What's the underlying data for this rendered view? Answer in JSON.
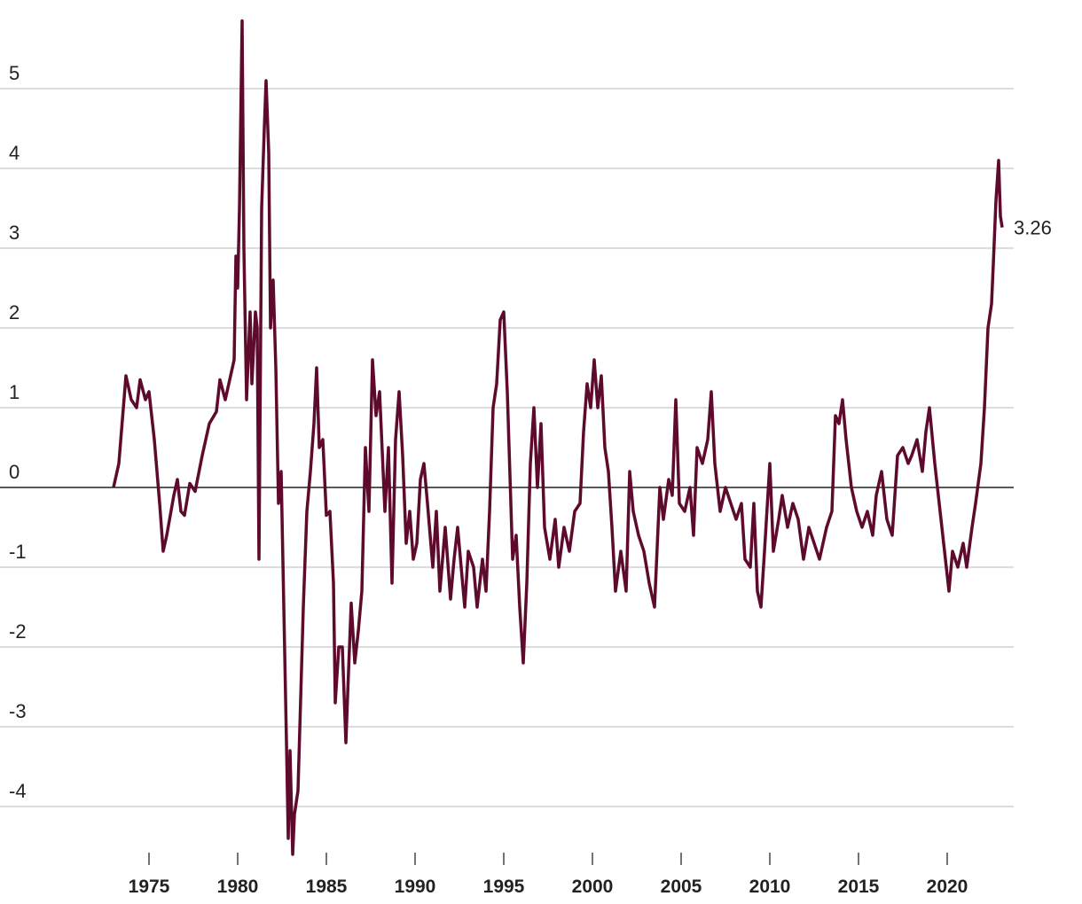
{
  "chart_data": {
    "type": "line",
    "xlim": [
      1966.6,
      2023.75
    ],
    "xticks": [
      1975,
      1980,
      1985,
      1990,
      1995,
      2000,
      2005,
      2010,
      2015,
      2020
    ],
    "ylim": [
      -4.6,
      5.9
    ],
    "yticks": [
      -4,
      -3,
      -2,
      -1,
      0,
      1,
      2,
      3,
      4,
      5
    ],
    "grid": true,
    "series": [
      {
        "color": "#5e0a2c",
        "x": [
          1973.0,
          1973.3,
          1973.7,
          1974.0,
          1974.3,
          1974.5,
          1974.8,
          1975.0,
          1975.3,
          1975.6,
          1975.8,
          1976.0,
          1976.4,
          1976.6,
          1976.8,
          1977.0,
          1977.3,
          1977.6,
          1978.0,
          1978.4,
          1978.8,
          1979.0,
          1979.3,
          1979.6,
          1979.8,
          1979.9,
          1980.0,
          1980.1,
          1980.25,
          1980.35,
          1980.5,
          1980.7,
          1980.8,
          1981.0,
          1981.1,
          1981.2,
          1981.35,
          1981.5,
          1981.6,
          1981.75,
          1981.85,
          1982.0,
          1982.15,
          1982.3,
          1982.45,
          1982.6,
          1982.75,
          1982.85,
          1982.95,
          1983.1,
          1983.2,
          1983.4,
          1983.7,
          1983.9,
          1984.1,
          1984.3,
          1984.45,
          1984.6,
          1984.8,
          1985.0,
          1985.2,
          1985.4,
          1985.5,
          1985.7,
          1985.9,
          1986.1,
          1986.25,
          1986.4,
          1986.6,
          1986.8,
          1987.0,
          1987.2,
          1987.4,
          1987.6,
          1987.8,
          1988.0,
          1988.3,
          1988.5,
          1988.7,
          1988.9,
          1989.1,
          1989.3,
          1989.5,
          1989.7,
          1989.9,
          1990.1,
          1990.3,
          1990.5,
          1990.7,
          1991.0,
          1991.2,
          1991.4,
          1991.7,
          1992.0,
          1992.2,
          1992.4,
          1992.6,
          1992.8,
          1993.0,
          1993.3,
          1993.5,
          1993.8,
          1994.0,
          1994.2,
          1994.4,
          1994.6,
          1994.8,
          1995.0,
          1995.2,
          1995.5,
          1995.7,
          1995.9,
          1996.1,
          1996.3,
          1996.5,
          1996.7,
          1996.9,
          1997.1,
          1997.3,
          1997.6,
          1997.9,
          1998.1,
          1998.4,
          1998.7,
          1999.0,
          1999.3,
          1999.5,
          1999.7,
          1999.9,
          2000.1,
          2000.3,
          2000.5,
          2000.7,
          2000.9,
          2001.1,
          2001.3,
          2001.6,
          2001.9,
          2002.1,
          2002.3,
          2002.6,
          2002.9,
          2003.2,
          2003.5,
          2003.8,
          2004.0,
          2004.3,
          2004.5,
          2004.7,
          2004.9,
          2005.2,
          2005.5,
          2005.7,
          2005.9,
          2006.2,
          2006.5,
          2006.7,
          2006.9,
          2007.2,
          2007.5,
          2007.8,
          2008.1,
          2008.4,
          2008.6,
          2008.9,
          2009.1,
          2009.3,
          2009.5,
          2009.7,
          2010.0,
          2010.2,
          2010.5,
          2010.7,
          2011.0,
          2011.3,
          2011.6,
          2011.9,
          2012.2,
          2012.5,
          2012.8,
          2013.2,
          2013.5,
          2013.7,
          2013.9,
          2014.1,
          2014.3,
          2014.6,
          2014.9,
          2015.2,
          2015.5,
          2015.8,
          2016.0,
          2016.3,
          2016.6,
          2016.9,
          2017.2,
          2017.5,
          2017.8,
          2018.0,
          2018.3,
          2018.6,
          2018.8,
          2019.0,
          2019.3,
          2019.6,
          2019.9,
          2020.1,
          2020.3,
          2020.6,
          2020.9,
          2021.1,
          2021.4,
          2021.6,
          2021.9,
          2022.1,
          2022.3,
          2022.5,
          2022.6,
          2022.75,
          2022.9,
          2023.0,
          2023.1
        ],
        "values": [
          0.0,
          0.3,
          1.4,
          1.1,
          1.0,
          1.35,
          1.1,
          1.2,
          0.6,
          -0.2,
          -0.8,
          -0.6,
          -0.1,
          0.1,
          -0.3,
          -0.35,
          0.05,
          -0.05,
          0.4,
          0.8,
          0.95,
          1.35,
          1.1,
          1.4,
          1.6,
          2.9,
          2.5,
          3.5,
          5.85,
          3.0,
          1.1,
          2.2,
          1.3,
          2.2,
          2.0,
          -0.9,
          3.5,
          4.5,
          5.1,
          4.2,
          2.0,
          2.6,
          1.5,
          -0.2,
          0.2,
          -1.5,
          -3.2,
          -4.4,
          -3.3,
          -4.6,
          -4.1,
          -3.8,
          -1.5,
          -0.3,
          0.2,
          0.8,
          1.5,
          0.5,
          0.6,
          -0.35,
          -0.3,
          -1.2,
          -2.7,
          -2.0,
          -2.0,
          -3.2,
          -2.3,
          -1.45,
          -2.2,
          -1.8,
          -1.3,
          0.5,
          -0.3,
          1.6,
          0.9,
          1.2,
          -0.3,
          0.5,
          -1.2,
          0.6,
          1.2,
          0.4,
          -0.7,
          -0.3,
          -0.9,
          -0.7,
          0.1,
          0.3,
          -0.2,
          -1.0,
          -0.3,
          -1.3,
          -0.5,
          -1.4,
          -0.9,
          -0.5,
          -1.0,
          -1.5,
          -0.8,
          -1.0,
          -1.5,
          -0.9,
          -1.3,
          -0.3,
          1.0,
          1.3,
          2.1,
          2.2,
          1.2,
          -0.9,
          -0.6,
          -1.5,
          -2.2,
          -1.2,
          0.3,
          1.0,
          0.0,
          0.8,
          -0.5,
          -0.9,
          -0.4,
          -1.0,
          -0.5,
          -0.8,
          -0.3,
          -0.2,
          0.7,
          1.3,
          1.0,
          1.6,
          1.0,
          1.4,
          0.5,
          0.2,
          -0.5,
          -1.3,
          -0.8,
          -1.3,
          0.2,
          -0.3,
          -0.6,
          -0.8,
          -1.2,
          -1.5,
          0.0,
          -0.4,
          0.1,
          -0.1,
          1.1,
          -0.2,
          -0.3,
          0.0,
          -0.6,
          0.5,
          0.3,
          0.6,
          1.2,
          0.3,
          -0.3,
          0.0,
          -0.2,
          -0.4,
          -0.2,
          -0.9,
          -1.0,
          -0.2,
          -1.3,
          -1.5,
          -0.8,
          0.3,
          -0.8,
          -0.4,
          -0.1,
          -0.5,
          -0.2,
          -0.4,
          -0.9,
          -0.5,
          -0.7,
          -0.9,
          -0.5,
          -0.3,
          0.9,
          0.8,
          1.1,
          0.6,
          0.0,
          -0.3,
          -0.5,
          -0.3,
          -0.6,
          -0.1,
          0.2,
          -0.4,
          -0.6,
          0.4,
          0.5,
          0.3,
          0.4,
          0.6,
          0.2,
          0.7,
          1.0,
          0.3,
          -0.3,
          -0.9,
          -1.3,
          -0.8,
          -1.0,
          -0.7,
          -1.0,
          -0.5,
          -0.2,
          0.3,
          1.0,
          2.0,
          2.3,
          2.8,
          3.6,
          4.1,
          3.4,
          3.26
        ]
      }
    ]
  }
}
